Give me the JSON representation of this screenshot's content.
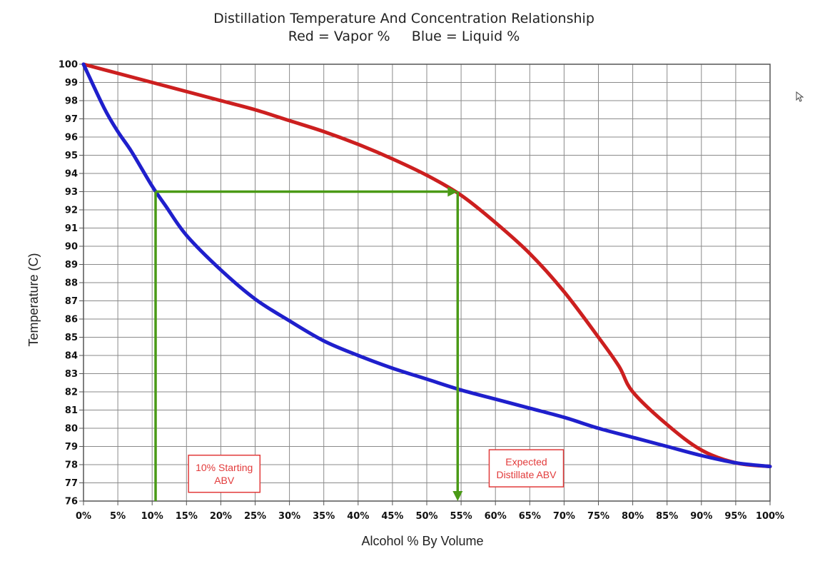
{
  "chart_data": {
    "type": "line",
    "title": "Distillation Temperature And Concentration Relationship",
    "subtitle": "Red = Vapor %     Blue = Liquid %",
    "xlabel": "Alcohol % By Volume",
    "ylabel": "Temperature (C)",
    "xlim": [
      0,
      100
    ],
    "ylim": [
      76,
      100
    ],
    "grid": true,
    "x_ticks": [
      "0%",
      "5%",
      "10%",
      "15%",
      "20%",
      "25%",
      "30%",
      "35%",
      "40%",
      "45%",
      "50%",
      "55%",
      "60%",
      "65%",
      "70%",
      "75%",
      "80%",
      "85%",
      "90%",
      "95%",
      "100%"
    ],
    "y_ticks": [
      "76",
      "77",
      "78",
      "79",
      "80",
      "81",
      "82",
      "83",
      "84",
      "85",
      "86",
      "87",
      "88",
      "89",
      "90",
      "91",
      "92",
      "93",
      "94",
      "95",
      "96",
      "97",
      "98",
      "99",
      "100"
    ],
    "series": [
      {
        "color": "#cc1f1f",
        "points": [
          [
            0,
            100
          ],
          [
            5,
            99.5
          ],
          [
            10,
            99.0
          ],
          [
            15,
            98.5
          ],
          [
            20,
            98.0
          ],
          [
            25,
            97.5
          ],
          [
            30,
            96.9
          ],
          [
            35,
            96.3
          ],
          [
            40,
            95.6
          ],
          [
            45,
            94.8
          ],
          [
            50,
            93.9
          ],
          [
            55,
            92.8
          ],
          [
            60,
            91.3
          ],
          [
            65,
            89.6
          ],
          [
            70,
            87.5
          ],
          [
            75,
            85.0
          ],
          [
            78,
            83.4
          ],
          [
            80,
            82.0
          ],
          [
            85,
            80.2
          ],
          [
            90,
            78.8
          ],
          [
            95,
            78.1
          ],
          [
            100,
            77.9
          ]
        ]
      },
      {
        "color": "#1f1fcc",
        "points": [
          [
            0,
            100
          ],
          [
            3,
            97.6
          ],
          [
            5,
            96.3
          ],
          [
            7,
            95.2
          ],
          [
            10,
            93.3
          ],
          [
            12,
            92.2
          ],
          [
            15,
            90.6
          ],
          [
            20,
            88.7
          ],
          [
            25,
            87.1
          ],
          [
            30,
            85.9
          ],
          [
            35,
            84.8
          ],
          [
            40,
            84.0
          ],
          [
            45,
            83.3
          ],
          [
            50,
            82.7
          ],
          [
            55,
            82.1
          ],
          [
            60,
            81.6
          ],
          [
            65,
            81.1
          ],
          [
            70,
            80.6
          ],
          [
            75,
            80.0
          ],
          [
            80,
            79.5
          ],
          [
            85,
            79.0
          ],
          [
            90,
            78.5
          ],
          [
            95,
            78.1
          ],
          [
            100,
            77.9
          ]
        ]
      }
    ],
    "guides": [
      {
        "color": "#4a9a16",
        "points": [
          [
            10.5,
            76
          ],
          [
            10.5,
            93
          ]
        ]
      },
      {
        "color": "#4a9a16",
        "points": [
          [
            10.5,
            93
          ],
          [
            54.5,
            93
          ]
        ],
        "arrow": "end"
      },
      {
        "color": "#4a9a16",
        "points": [
          [
            54.5,
            93
          ],
          [
            54.5,
            76
          ]
        ],
        "arrow": "end"
      }
    ],
    "annotations": [
      {
        "text_lines": [
          "10% Starting",
          "ABV"
        ],
        "x": 20.5,
        "y": 77.5,
        "color": "#e23b3b"
      },
      {
        "text_lines": [
          "Expected",
          "Distillate ABV"
        ],
        "x": 64.5,
        "y": 77.8,
        "color": "#e23b3b"
      }
    ]
  }
}
